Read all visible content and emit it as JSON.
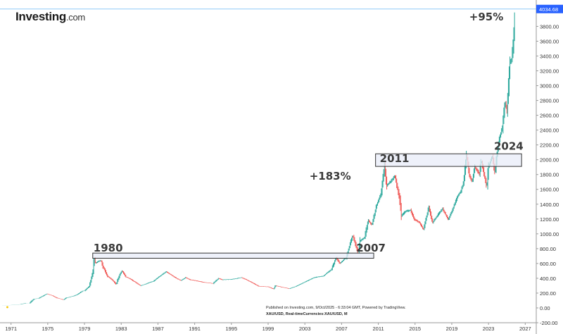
{
  "branding": {
    "logo_main": "Investing",
    "logo_suffix": ".com"
  },
  "footer": {
    "published": "Published on Investing.com, 9/Oct/2025 - 6:33:04 GMT, Powered by TradingView.",
    "instrument": "XAU/USD, Real-timeCurrencies:XAU/USD, M"
  },
  "colors": {
    "up": "#26a69a",
    "down": "#ef5350",
    "last_price_tag": "#2962ff",
    "last_price_line": "#90caf9",
    "box_fill": "#e8ecf8",
    "box_stroke": "#333333",
    "baseline_marker": "#f5c400"
  },
  "chart_data": {
    "type": "line",
    "series_style": "monthly candlestick bars",
    "xlabel": "",
    "ylabel": "",
    "xlim": [
      1969.8,
      2028.2
    ],
    "ylim": [
      -200,
      4080
    ],
    "x_ticks": [
      1971,
      1975,
      1979,
      1983,
      1987,
      1991,
      1995,
      1999,
      2003,
      2007,
      2011,
      2015,
      2019,
      2023,
      2027
    ],
    "y_ticks": [
      -200,
      0,
      200,
      400,
      600,
      800,
      1000,
      1200,
      1400,
      1600,
      1800,
      2000,
      2200,
      2400,
      2600,
      2800,
      3000,
      3200,
      3400,
      3600,
      3800
    ],
    "y_tick_labels": [
      "-200.00",
      "0.00",
      "200.00",
      "400.00",
      "600.00",
      "800.00",
      "1000.00",
      "1200.00",
      "1400.00",
      "1600.00",
      "1800.00",
      "2000.00",
      "2200.00",
      "2400.00",
      "2600.00",
      "2800.00",
      "3000.00",
      "3200.00",
      "3400.00",
      "3600.00",
      "3800.00"
    ],
    "last_price": 4034.68,
    "last_price_label": "4034.68",
    "grid": false,
    "points": [
      [
        1970.0,
        35
      ],
      [
        1971.0,
        38
      ],
      [
        1972.0,
        48
      ],
      [
        1972.6,
        65
      ],
      [
        1973.0,
        65
      ],
      [
        1973.5,
        120
      ],
      [
        1974.0,
        130
      ],
      [
        1974.9,
        190
      ],
      [
        1975.5,
        165
      ],
      [
        1976.0,
        135
      ],
      [
        1976.7,
        110
      ],
      [
        1977.0,
        135
      ],
      [
        1977.8,
        160
      ],
      [
        1978.2,
        180
      ],
      [
        1978.8,
        230
      ],
      [
        1979.0,
        230
      ],
      [
        1979.5,
        290
      ],
      [
        1979.9,
        470
      ],
      [
        1980.05,
        670
      ],
      [
        1980.2,
        600
      ],
      [
        1980.5,
        630
      ],
      [
        1980.8,
        640
      ],
      [
        1981.0,
        560
      ],
      [
        1981.5,
        430
      ],
      [
        1982.0,
        380
      ],
      [
        1982.45,
        320
      ],
      [
        1982.8,
        440
      ],
      [
        1983.1,
        500
      ],
      [
        1983.5,
        420
      ],
      [
        1984.0,
        390
      ],
      [
        1984.5,
        350
      ],
      [
        1985.1,
        300
      ],
      [
        1985.6,
        320
      ],
      [
        1986.0,
        340
      ],
      [
        1986.5,
        360
      ],
      [
        1987.0,
        410
      ],
      [
        1987.9,
        490
      ],
      [
        1988.5,
        440
      ],
      [
        1989.0,
        400
      ],
      [
        1989.5,
        370
      ],
      [
        1990.0,
        410
      ],
      [
        1990.5,
        380
      ],
      [
        1991.0,
        370
      ],
      [
        1992.0,
        345
      ],
      [
        1993.0,
        330
      ],
      [
        1993.6,
        400
      ],
      [
        1994.0,
        380
      ],
      [
        1995.0,
        385
      ],
      [
        1996.1,
        410
      ],
      [
        1996.8,
        370
      ],
      [
        1997.5,
        325
      ],
      [
        1998.0,
        290
      ],
      [
        1999.0,
        285
      ],
      [
        1999.6,
        255
      ],
      [
        1999.8,
        300
      ],
      [
        2000.5,
        280
      ],
      [
        2001.3,
        260
      ],
      [
        2002.0,
        290
      ],
      [
        2002.5,
        320
      ],
      [
        2003.0,
        350
      ],
      [
        2004.0,
        410
      ],
      [
        2005.0,
        430
      ],
      [
        2005.9,
        520
      ],
      [
        2006.4,
        680
      ],
      [
        2006.8,
        600
      ],
      [
        2007.5,
        680
      ],
      [
        2008.2,
        980
      ],
      [
        2008.8,
        740
      ],
      [
        2009.0,
        900
      ],
      [
        2009.5,
        950
      ],
      [
        2009.9,
        1180
      ],
      [
        2010.3,
        1120
      ],
      [
        2010.8,
        1380
      ],
      [
        2011.3,
        1550
      ],
      [
        2011.67,
        1900
      ],
      [
        2011.9,
        1650
      ],
      [
        2012.3,
        1700
      ],
      [
        2012.8,
        1780
      ],
      [
        2013.3,
        1480
      ],
      [
        2013.5,
        1240
      ],
      [
        2013.9,
        1300
      ],
      [
        2014.5,
        1320
      ],
      [
        2014.9,
        1200
      ],
      [
        2015.5,
        1150
      ],
      [
        2015.9,
        1060
      ],
      [
        2016.5,
        1360
      ],
      [
        2016.9,
        1150
      ],
      [
        2017.5,
        1260
      ],
      [
        2018.0,
        1340
      ],
      [
        2018.6,
        1190
      ],
      [
        2019.0,
        1300
      ],
      [
        2019.6,
        1500
      ],
      [
        2020.0,
        1580
      ],
      [
        2020.3,
        1700
      ],
      [
        2020.6,
        2070
      ],
      [
        2020.9,
        1800
      ],
      [
        2021.2,
        1700
      ],
      [
        2021.5,
        1900
      ],
      [
        2022.0,
        1810
      ],
      [
        2022.2,
        2000
      ],
      [
        2022.8,
        1630
      ],
      [
        2023.0,
        1900
      ],
      [
        2023.4,
        2050
      ],
      [
        2023.7,
        1820
      ],
      [
        2023.9,
        2060
      ],
      [
        2024.2,
        2300
      ],
      [
        2024.5,
        2430
      ],
      [
        2024.8,
        2780
      ],
      [
        2025.0,
        2650
      ],
      [
        2025.3,
        3300
      ],
      [
        2025.5,
        3350
      ],
      [
        2025.7,
        3600
      ],
      [
        2025.8,
        3860
      ],
      [
        2025.9,
        4034.68
      ]
    ],
    "annotations": [
      {
        "text": "1980",
        "kind": "box",
        "x0": 1979.9,
        "x1": 2010.5,
        "y0": 670,
        "y1": 740
      },
      {
        "text": "2007",
        "kind": "label",
        "x": 2008.6,
        "y": 760
      },
      {
        "text": "2011",
        "kind": "box",
        "x0": 2010.7,
        "x1": 2026.6,
        "y0": 1910,
        "y1": 2080
      },
      {
        "text": "2024",
        "kind": "label",
        "x": 2023.6,
        "y": 2135
      },
      {
        "text": "+183%",
        "kind": "label",
        "x": 2003.5,
        "y": 1730
      },
      {
        "text": "+95%",
        "kind": "label",
        "x": 2020.9,
        "y": 3880
      }
    ]
  }
}
